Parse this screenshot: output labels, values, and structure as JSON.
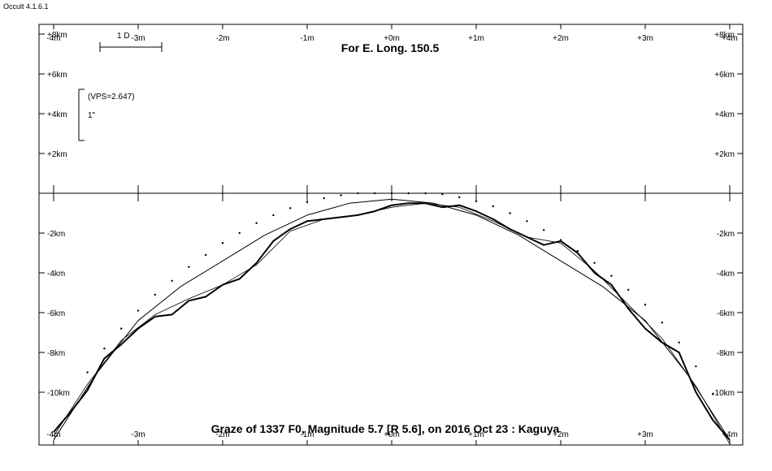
{
  "app": {
    "title": "Occult 4.1.6.1"
  },
  "chart_data": {
    "type": "line",
    "title": "For E. Long. 150.5",
    "subtitle": "Graze of  1337 F0,  Magnitude 5.7 [R 5.6],  on 2016 Oct 23  :  Kaguya",
    "x_range_minutes": [
      -4,
      4
    ],
    "y_range_km": [
      -12.5,
      8
    ],
    "x_tick_labels": [
      "-4m",
      "-3m",
      "-2m",
      "-1m",
      "+0m",
      "+1m",
      "+2m",
      "+3m",
      "+4m"
    ],
    "y_tick_labels_upper": [
      "+8km",
      "+6km",
      "+4km",
      "+2km"
    ],
    "y_tick_labels_lower": [
      "-2km",
      "-4km",
      "-6km",
      "-8km",
      "-10km"
    ],
    "scale_bar": {
      "label": "1 D"
    },
    "vertical_scale": {
      "vps_label": "(VPS=2.647)",
      "arc_label": "1\""
    },
    "grid": false,
    "series": [
      {
        "role": "kaguya-limb-profile",
        "x": [
          -4,
          -3.8,
          -3.6,
          -3.4,
          -3.2,
          -3.0,
          -2.8,
          -2.6,
          -2.4,
          -2.2,
          -2.0,
          -1.8,
          -1.6,
          -1.4,
          -1.2,
          -1.0,
          -0.8,
          -0.6,
          -0.4,
          -0.2,
          0.0,
          0.2,
          0.4,
          0.6,
          0.8,
          1.0,
          1.2,
          1.4,
          1.6,
          1.8,
          2.0,
          2.2,
          2.4,
          2.6,
          2.8,
          3.0,
          3.2,
          3.4,
          3.6,
          3.8,
          4.0
        ],
        "y": [
          -12.0,
          -11.0,
          -9.9,
          -8.3,
          -7.6,
          -6.8,
          -6.2,
          -6.1,
          -5.4,
          -5.2,
          -4.6,
          -4.3,
          -3.5,
          -2.4,
          -1.8,
          -1.4,
          -1.3,
          -1.2,
          -1.1,
          -0.9,
          -0.6,
          -0.5,
          -0.5,
          -0.7,
          -0.6,
          -0.9,
          -1.3,
          -1.8,
          -2.2,
          -2.6,
          -2.4,
          -3.0,
          -4.0,
          -4.6,
          -5.8,
          -6.8,
          -7.5,
          -8.0,
          -10.0,
          -11.4,
          -12.4
        ]
      },
      {
        "role": "smoothed-limb",
        "x": [
          -4,
          -3.6,
          -3.2,
          -2.8,
          -2.4,
          -2.0,
          -1.6,
          -1.2,
          -0.8,
          -0.4,
          0.0,
          0.4,
          0.8,
          1.2,
          1.6,
          2.0,
          2.4,
          2.8,
          3.2,
          3.6,
          4.0
        ],
        "y": [
          -12.2,
          -9.6,
          -7.4,
          -6.1,
          -5.3,
          -4.6,
          -3.6,
          -1.9,
          -1.3,
          -1.1,
          -0.7,
          -0.5,
          -0.7,
          -1.4,
          -2.2,
          -2.5,
          -3.9,
          -5.6,
          -7.3,
          -9.7,
          -12.6
        ]
      },
      {
        "role": "mean-limb",
        "x": [
          -4,
          -3.5,
          -3.0,
          -2.5,
          -2.0,
          -1.5,
          -1.0,
          -0.5,
          0.0,
          0.5,
          1.0,
          1.5,
          2.0,
          2.5,
          3.0,
          3.5,
          4.0
        ],
        "y": [
          -12.4,
          -9.1,
          -6.4,
          -4.7,
          -3.4,
          -2.1,
          -1.1,
          -0.5,
          -0.3,
          -0.5,
          -1.1,
          -2.1,
          -3.4,
          -4.7,
          -6.4,
          -9.1,
          -12.4
        ]
      },
      {
        "role": "dotted-profile",
        "x": [
          -3.6,
          -3.4,
          -3.2,
          -3.0,
          -2.8,
          -2.6,
          -2.4,
          -2.2,
          -2.0,
          -1.8,
          -1.6,
          -1.4,
          -1.2,
          -1.0,
          -0.8,
          -0.6,
          -0.4,
          -0.2,
          0.0,
          0.2,
          0.4,
          0.6,
          0.8,
          1.0,
          1.2,
          1.4,
          1.6,
          1.8,
          2.0,
          2.2,
          2.4,
          2.6,
          2.8,
          3.0,
          3.2,
          3.4,
          3.6,
          3.8
        ],
        "y": [
          -9.0,
          -7.8,
          -6.8,
          -5.9,
          -5.1,
          -4.4,
          -3.7,
          -3.1,
          -2.5,
          -2.0,
          -1.5,
          -1.1,
          -0.75,
          -0.45,
          -0.25,
          -0.1,
          0.0,
          0.0,
          0.0,
          0.0,
          0.0,
          -0.05,
          -0.2,
          -0.4,
          -0.65,
          -1.0,
          -1.4,
          -1.85,
          -2.35,
          -2.9,
          -3.5,
          -4.15,
          -4.85,
          -5.6,
          -6.5,
          -7.5,
          -8.7,
          -10.1
        ]
      }
    ]
  }
}
